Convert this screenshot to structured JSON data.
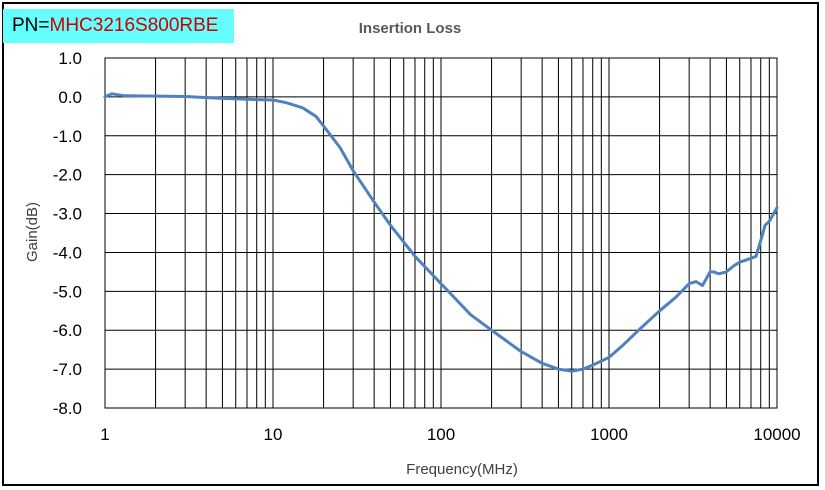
{
  "label": {
    "prefix": "PN=",
    "part_number": "MHC3216S800RBE"
  },
  "chart_data": {
    "type": "line",
    "title": "Insertion Loss",
    "xlabel": "Frequency(MHz)",
    "ylabel": "Gain(dB)",
    "x_scale": "log",
    "xlim": [
      1,
      10000
    ],
    "ylim": [
      -8,
      1
    ],
    "x_ticks": [
      1,
      10,
      100,
      1000,
      10000
    ],
    "x_tick_labels": [
      "1",
      "10",
      "100",
      "1000",
      "10000"
    ],
    "y_ticks": [
      1,
      0,
      -1,
      -2,
      -3,
      -4,
      -5,
      -6,
      -7,
      -8
    ],
    "y_tick_labels": [
      "1.0",
      "0.0",
      "-1.0",
      "-2.0",
      "-3.0",
      "-4.0",
      "-5.0",
      "-6.0",
      "-7.0",
      "-8.0"
    ],
    "grid": true,
    "legend": "none",
    "series": [
      {
        "color": "#4f81bd",
        "x": [
          1,
          1.1,
          1.3,
          2,
          3,
          5,
          8,
          10,
          12,
          15,
          18,
          20,
          25,
          30,
          40,
          50,
          70,
          100,
          150,
          200,
          300,
          400,
          500,
          600,
          700,
          800,
          1000,
          1200,
          1500,
          2000,
          2500,
          3000,
          3300,
          3600,
          4000,
          4200,
          4500,
          5000,
          5500,
          6000,
          6500,
          7000,
          7500,
          8000,
          8500,
          9000,
          10000
        ],
        "y": [
          0.0,
          0.08,
          0.03,
          0.02,
          0.01,
          -0.04,
          -0.07,
          -0.08,
          -0.15,
          -0.28,
          -0.5,
          -0.75,
          -1.3,
          -1.9,
          -2.7,
          -3.3,
          -4.1,
          -4.8,
          -5.6,
          -6.0,
          -6.55,
          -6.85,
          -7.0,
          -7.05,
          -7.0,
          -6.9,
          -6.7,
          -6.4,
          -6.0,
          -5.5,
          -5.15,
          -4.8,
          -4.75,
          -4.85,
          -4.5,
          -4.5,
          -4.55,
          -4.5,
          -4.35,
          -4.25,
          -4.2,
          -4.15,
          -4.1,
          -3.7,
          -3.3,
          -3.2,
          -2.85
        ]
      }
    ]
  }
}
